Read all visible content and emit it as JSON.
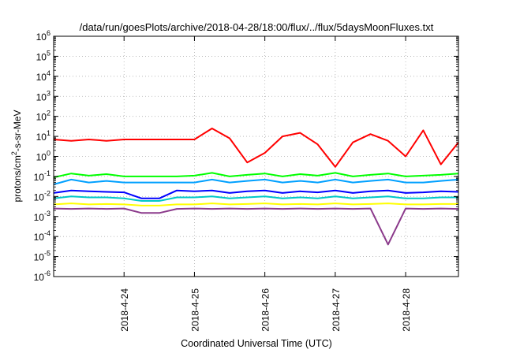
{
  "chart_data": {
    "type": "line",
    "title": "/data/run/goesPlots/archive/2018-04-28/18:00/flux/../flux/5daysMoonFluxes.txt",
    "xlabel": "Coordinated Universal Time (UTC)",
    "ylabel": "protons/cm²-s-sr-MeV",
    "ylabel_parts": {
      "pre": "protons/cm",
      "sup": "2",
      "post": "-s-sr-MeV"
    },
    "yscale": "log",
    "ylim": [
      1e-06,
      1000000.0
    ],
    "xlim": [
      "2018-04-23 00:00",
      "2018-04-28 18:00"
    ],
    "grid": true,
    "legend": "none",
    "yticks": [
      {
        "value": 1e-06,
        "base": "10",
        "exp": "-6"
      },
      {
        "value": 1e-05,
        "base": "10",
        "exp": "-5"
      },
      {
        "value": 0.0001,
        "base": "10",
        "exp": "-4"
      },
      {
        "value": 0.001,
        "base": "10",
        "exp": "-3"
      },
      {
        "value": 0.01,
        "base": "10",
        "exp": "-2"
      },
      {
        "value": 0.1,
        "base": "10",
        "exp": "-1"
      },
      {
        "value": 1,
        "base": "10",
        "exp": "0"
      },
      {
        "value": 10.0,
        "base": "10",
        "exp": "1"
      },
      {
        "value": 100.0,
        "base": "10",
        "exp": "2"
      },
      {
        "value": 1000.0,
        "base": "10",
        "exp": "3"
      },
      {
        "value": 10000.0,
        "base": "10",
        "exp": "4"
      },
      {
        "value": 100000.0,
        "base": "10",
        "exp": "5"
      },
      {
        "value": 1000000.0,
        "base": "10",
        "exp": "6"
      }
    ],
    "xticks": [
      {
        "value": "2018-04-24 00:00",
        "label": "2018-4-24"
      },
      {
        "value": "2018-04-25 00:00",
        "label": "2018-4-25"
      },
      {
        "value": "2018-04-26 00:00",
        "label": "2018-4-26"
      },
      {
        "value": "2018-04-27 00:00",
        "label": "2018-4-27"
      },
      {
        "value": "2018-04-28 00:00",
        "label": "2018-4-28"
      }
    ],
    "series": [
      {
        "color": "#ff0000",
        "x": [
          "2018-04-23 00:00",
          "2018-04-23 06:00",
          "2018-04-23 12:00",
          "2018-04-23 18:00",
          "2018-04-24 00:00",
          "2018-04-24 06:00",
          "2018-04-24 12:00",
          "2018-04-24 18:00",
          "2018-04-25 00:00",
          "2018-04-25 06:00",
          "2018-04-25 12:00",
          "2018-04-25 18:00",
          "2018-04-26 00:00",
          "2018-04-26 06:00",
          "2018-04-26 12:00",
          "2018-04-26 18:00",
          "2018-04-27 00:00",
          "2018-04-27 06:00",
          "2018-04-27 12:00",
          "2018-04-27 18:00",
          "2018-04-28 00:00",
          "2018-04-28 06:00",
          "2018-04-28 12:00",
          "2018-04-28 18:00"
        ],
        "values": [
          7,
          6,
          7,
          6,
          7,
          7,
          7,
          7,
          7,
          25,
          8,
          0.5,
          1.5,
          10,
          15,
          4,
          0.3,
          5,
          13,
          6,
          1,
          20,
          0.4,
          5
        ]
      },
      {
        "color": "#00ff00",
        "x": [
          "2018-04-23 00:00",
          "2018-04-23 06:00",
          "2018-04-23 12:00",
          "2018-04-23 18:00",
          "2018-04-24 00:00",
          "2018-04-24 06:00",
          "2018-04-24 12:00",
          "2018-04-24 18:00",
          "2018-04-25 00:00",
          "2018-04-25 06:00",
          "2018-04-25 12:00",
          "2018-04-25 18:00",
          "2018-04-26 00:00",
          "2018-04-26 06:00",
          "2018-04-26 12:00",
          "2018-04-26 18:00",
          "2018-04-27 00:00",
          "2018-04-27 06:00",
          "2018-04-27 12:00",
          "2018-04-27 18:00",
          "2018-04-28 00:00",
          "2018-04-28 06:00",
          "2018-04-28 12:00",
          "2018-04-28 18:00"
        ],
        "values": [
          0.09,
          0.14,
          0.11,
          0.13,
          0.1,
          0.1,
          0.1,
          0.1,
          0.11,
          0.15,
          0.1,
          0.12,
          0.14,
          0.1,
          0.13,
          0.11,
          0.15,
          0.1,
          0.12,
          0.14,
          0.1,
          0.11,
          0.12,
          0.14
        ]
      },
      {
        "color": "#00a0ff",
        "x": [
          "2018-04-23 00:00",
          "2018-04-23 06:00",
          "2018-04-23 12:00",
          "2018-04-23 18:00",
          "2018-04-24 00:00",
          "2018-04-24 06:00",
          "2018-04-24 12:00",
          "2018-04-24 18:00",
          "2018-04-25 00:00",
          "2018-04-25 06:00",
          "2018-04-25 12:00",
          "2018-04-25 18:00",
          "2018-04-26 00:00",
          "2018-04-26 06:00",
          "2018-04-26 12:00",
          "2018-04-26 18:00",
          "2018-04-27 00:00",
          "2018-04-27 06:00",
          "2018-04-27 12:00",
          "2018-04-27 18:00",
          "2018-04-28 00:00",
          "2018-04-28 06:00",
          "2018-04-28 12:00",
          "2018-04-28 18:00"
        ],
        "values": [
          0.04,
          0.07,
          0.05,
          0.06,
          0.05,
          0.05,
          0.05,
          0.05,
          0.05,
          0.07,
          0.05,
          0.06,
          0.07,
          0.05,
          0.06,
          0.05,
          0.07,
          0.05,
          0.06,
          0.07,
          0.05,
          0.05,
          0.06,
          0.07
        ]
      },
      {
        "color": "#0000ff",
        "x": [
          "2018-04-23 00:00",
          "2018-04-23 06:00",
          "2018-04-23 12:00",
          "2018-04-23 18:00",
          "2018-04-24 00:00",
          "2018-04-24 06:00",
          "2018-04-24 12:00",
          "2018-04-24 18:00",
          "2018-04-25 00:00",
          "2018-04-25 06:00",
          "2018-04-25 12:00",
          "2018-04-25 18:00",
          "2018-04-26 00:00",
          "2018-04-26 06:00",
          "2018-04-26 12:00",
          "2018-04-26 18:00",
          "2018-04-27 00:00",
          "2018-04-27 06:00",
          "2018-04-27 12:00",
          "2018-04-27 18:00",
          "2018-04-28 00:00",
          "2018-04-28 06:00",
          "2018-04-28 12:00",
          "2018-04-28 18:00"
        ],
        "values": [
          0.015,
          0.02,
          0.018,
          0.017,
          0.016,
          0.008,
          0.008,
          0.02,
          0.018,
          0.02,
          0.015,
          0.018,
          0.02,
          0.015,
          0.018,
          0.016,
          0.02,
          0.015,
          0.018,
          0.02,
          0.015,
          0.016,
          0.018,
          0.017
        ]
      },
      {
        "color": "#00c8c8",
        "x": [
          "2018-04-23 00:00",
          "2018-04-23 06:00",
          "2018-04-23 12:00",
          "2018-04-23 18:00",
          "2018-04-24 00:00",
          "2018-04-24 06:00",
          "2018-04-24 12:00",
          "2018-04-24 18:00",
          "2018-04-25 00:00",
          "2018-04-25 06:00",
          "2018-04-25 12:00",
          "2018-04-25 18:00",
          "2018-04-26 00:00",
          "2018-04-26 06:00",
          "2018-04-26 12:00",
          "2018-04-26 18:00",
          "2018-04-27 00:00",
          "2018-04-27 06:00",
          "2018-04-27 12:00",
          "2018-04-27 18:00",
          "2018-04-28 00:00",
          "2018-04-28 06:00",
          "2018-04-28 12:00",
          "2018-04-28 18:00"
        ],
        "values": [
          0.008,
          0.01,
          0.009,
          0.009,
          0.008,
          0.006,
          0.006,
          0.009,
          0.009,
          0.01,
          0.008,
          0.009,
          0.01,
          0.008,
          0.009,
          0.008,
          0.01,
          0.008,
          0.009,
          0.01,
          0.008,
          0.008,
          0.009,
          0.009
        ]
      },
      {
        "color": "#ffff00",
        "x": [
          "2018-04-23 00:00",
          "2018-04-23 06:00",
          "2018-04-23 12:00",
          "2018-04-23 18:00",
          "2018-04-24 00:00",
          "2018-04-24 06:00",
          "2018-04-24 12:00",
          "2018-04-24 18:00",
          "2018-04-25 00:00",
          "2018-04-25 06:00",
          "2018-04-25 12:00",
          "2018-04-25 18:00",
          "2018-04-26 00:00",
          "2018-04-26 06:00",
          "2018-04-26 12:00",
          "2018-04-26 18:00",
          "2018-04-27 00:00",
          "2018-04-27 06:00",
          "2018-04-27 12:00",
          "2018-04-27 18:00",
          "2018-04-28 00:00",
          "2018-04-28 06:00",
          "2018-04-28 12:00",
          "2018-04-28 18:00"
        ],
        "values": [
          0.004,
          0.0045,
          0.004,
          0.0042,
          0.004,
          0.0035,
          0.0035,
          0.004,
          0.004,
          0.0045,
          0.004,
          0.0042,
          0.0045,
          0.004,
          0.0042,
          0.004,
          0.0045,
          0.004,
          0.0042,
          0.0045,
          0.004,
          0.004,
          0.0042,
          0.0042
        ]
      },
      {
        "color": "#8b3a8b",
        "x": [
          "2018-04-23 00:00",
          "2018-04-23 06:00",
          "2018-04-23 12:00",
          "2018-04-23 18:00",
          "2018-04-24 00:00",
          "2018-04-24 06:00",
          "2018-04-24 12:00",
          "2018-04-24 18:00",
          "2018-04-25 00:00",
          "2018-04-25 06:00",
          "2018-04-25 12:00",
          "2018-04-25 18:00",
          "2018-04-26 00:00",
          "2018-04-26 06:00",
          "2018-04-26 12:00",
          "2018-04-26 18:00",
          "2018-04-27 00:00",
          "2018-04-27 06:00",
          "2018-04-27 12:00",
          "2018-04-27 18:00",
          "2018-04-28 00:00",
          "2018-04-28 06:00",
          "2018-04-28 12:00",
          "2018-04-28 18:00"
        ],
        "values": [
          0.0025,
          0.0024,
          0.0025,
          0.0024,
          0.0025,
          0.0015,
          0.0015,
          0.0024,
          0.0025,
          0.0024,
          0.0025,
          0.0024,
          0.0025,
          0.0024,
          0.0025,
          0.0024,
          0.0025,
          0.0024,
          0.0025,
          4e-05,
          0.0025,
          0.0024,
          0.0025,
          0.0024
        ]
      }
    ]
  }
}
